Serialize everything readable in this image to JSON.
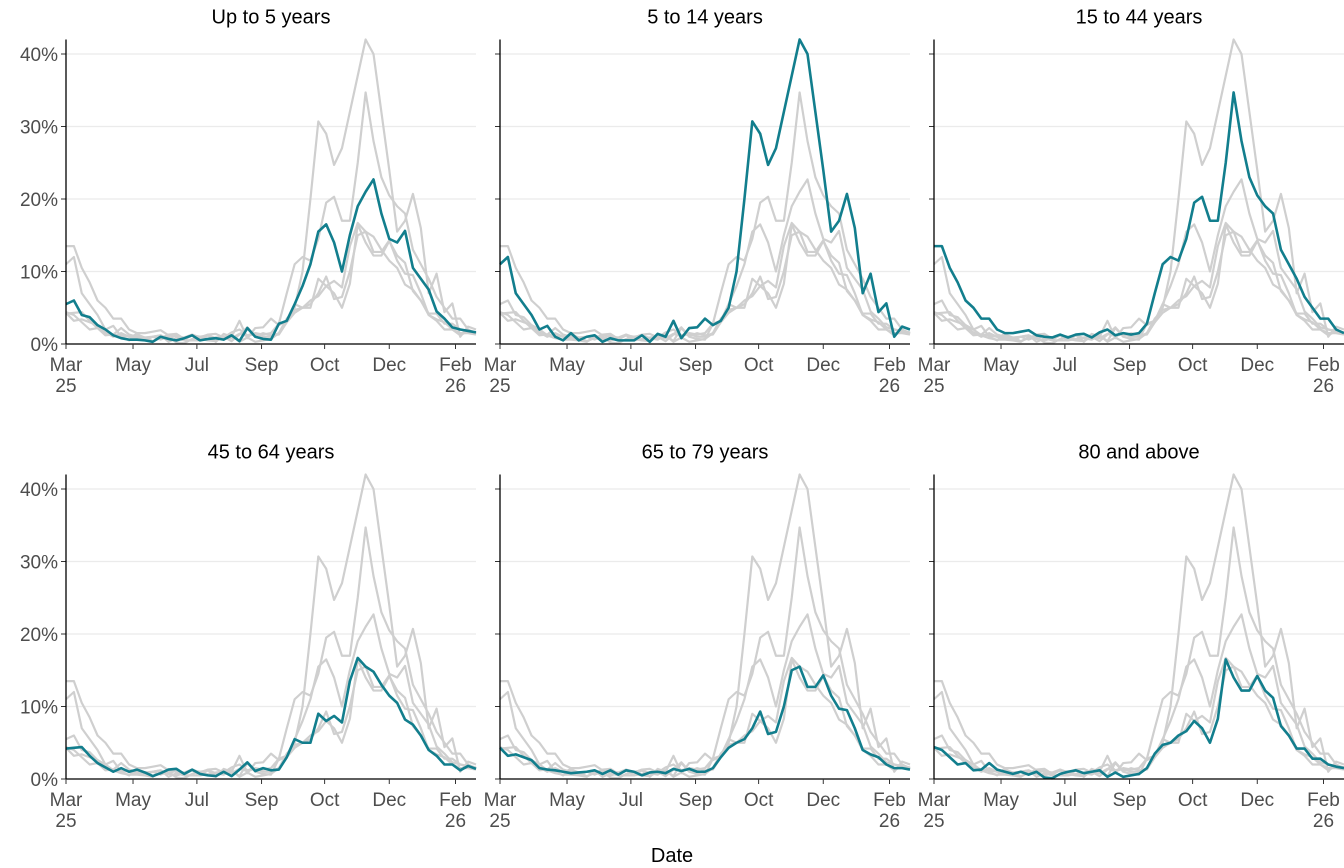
{
  "chart_data": {
    "type": "line",
    "x_label": "Date",
    "xlim": [
      0,
      52
    ],
    "xticks": [
      {
        "value": 0,
        "label": "Mar\n25"
      },
      {
        "value": 8.5,
        "label": "May"
      },
      {
        "value": 16.6,
        "label": "Jul"
      },
      {
        "value": 24.8,
        "label": "Sep"
      },
      {
        "value": 32.8,
        "label": "Oct"
      },
      {
        "value": 41,
        "label": "Dec"
      },
      {
        "value": 49.4,
        "label": "Feb\n26"
      }
    ],
    "ylim": [
      0,
      42
    ],
    "yticks": [
      {
        "value": 0,
        "label": "0%"
      },
      {
        "value": 10,
        "label": "10%"
      },
      {
        "value": 20,
        "label": "20%"
      },
      {
        "value": 30,
        "label": "30%"
      },
      {
        "value": 40,
        "label": "40%"
      }
    ],
    "grid": true,
    "context_color": "#cfcfcf",
    "series": [
      {
        "name": "Up to 5 years",
        "color": "#127e8d",
        "values": [
          5.5,
          6,
          4,
          3.7,
          2.6,
          2,
          1.2,
          0.8,
          0.6,
          0.6,
          0.5,
          0.3,
          1,
          0.7,
          0.5,
          0.8,
          1.2,
          0.5,
          0.7,
          0.8,
          0.6,
          1.2,
          0.4,
          2.2,
          1,
          0.7,
          0.6,
          2.8,
          3.2,
          5.5,
          8,
          11,
          15.5,
          16.5,
          14,
          10,
          15,
          19,
          21,
          22.7,
          18,
          14.5,
          14,
          15.6,
          10.5,
          9,
          7.5,
          4.5,
          3.5,
          2.3,
          2,
          1.8,
          1.6
        ]
      },
      {
        "name": "5 to 14 years",
        "color": "#127e8d",
        "values": [
          11,
          12,
          7,
          5.5,
          4,
          2,
          2.5,
          1,
          0.5,
          1.5,
          0.5,
          1,
          1.2,
          0.3,
          0.8,
          0.5,
          0.5,
          0.5,
          1.2,
          0.3,
          1.4,
          1,
          3.2,
          0.8,
          2.2,
          2.3,
          3.5,
          2.6,
          3.2,
          5,
          10,
          20,
          30.7,
          29,
          24.7,
          27,
          32,
          37,
          42,
          40,
          32,
          24,
          15.5,
          17,
          20.7,
          16,
          7,
          9.7,
          4.4,
          5.6,
          1,
          2.4,
          2
        ]
      },
      {
        "name": "15 to 44 years",
        "color": "#127e8d",
        "values": [
          13.5,
          13.5,
          10.5,
          8.5,
          6,
          5,
          3.5,
          3.5,
          2,
          1.5,
          1.5,
          1.7,
          1.9,
          1.2,
          1,
          0.9,
          1.3,
          0.9,
          1.3,
          1.4,
          0.9,
          1.6,
          2,
          1.2,
          1.5,
          1.3,
          1.5,
          2.8,
          7,
          11,
          12,
          11.5,
          14.5,
          19.5,
          20.3,
          17,
          17,
          25,
          34.7,
          28,
          23,
          20.5,
          19,
          18,
          13,
          11,
          9,
          6.5,
          5,
          3.5,
          3.5,
          2,
          1.5
        ]
      },
      {
        "name": "45 to 64 years",
        "color": "#127e8d",
        "values": [
          4.2,
          4.3,
          4.4,
          3.2,
          2.2,
          1.6,
          1,
          1.5,
          1,
          1.3,
          0.9,
          0.4,
          0.8,
          1.3,
          1.4,
          0.7,
          1.3,
          0.7,
          0.5,
          0.4,
          1,
          0.4,
          1.3,
          2.3,
          1.1,
          1.5,
          1.2,
          1.3,
          3,
          5.5,
          5,
          5,
          9,
          8,
          8.7,
          7.8,
          13.5,
          16.7,
          15.5,
          14.8,
          13,
          11.5,
          10.5,
          8.2,
          7.5,
          6,
          4,
          3.2,
          2,
          2,
          1.2,
          1.8,
          1.4
        ]
      },
      {
        "name": "65 to 79 years",
        "color": "#127e8d",
        "values": [
          4.3,
          3.2,
          3.4,
          3,
          2.6,
          1.5,
          1.3,
          1.2,
          1,
          0.8,
          0.9,
          1,
          1.2,
          0.7,
          1.2,
          0.6,
          1.2,
          1,
          0.5,
          0.9,
          1,
          0.8,
          1.4,
          1.1,
          1.4,
          1,
          1,
          1.5,
          3,
          4.3,
          5,
          5.5,
          7,
          9.3,
          6.2,
          6.5,
          10,
          15,
          15.5,
          12.7,
          12.7,
          14.3,
          11.5,
          9.7,
          9.5,
          7,
          4,
          3.4,
          3,
          2,
          1.5,
          1.5,
          1.3
        ]
      },
      {
        "name": "80 and above",
        "color": "#127e8d",
        "values": [
          4.4,
          4,
          3,
          2,
          2.2,
          1.2,
          1.3,
          2.2,
          1.3,
          1,
          0.7,
          1,
          0.6,
          1,
          0.2,
          0.1,
          0.7,
          1,
          1.2,
          0.8,
          1,
          1.2,
          0.3,
          0.9,
          0.3,
          0.5,
          0.7,
          1.5,
          3.5,
          4.7,
          5,
          6,
          6.6,
          8,
          7,
          5,
          8.3,
          16.5,
          14,
          12.2,
          12.2,
          14.2,
          12.2,
          11.2,
          7.3,
          6,
          4.2,
          4.2,
          2.8,
          2.8,
          2,
          1.7,
          1.5
        ]
      }
    ]
  }
}
